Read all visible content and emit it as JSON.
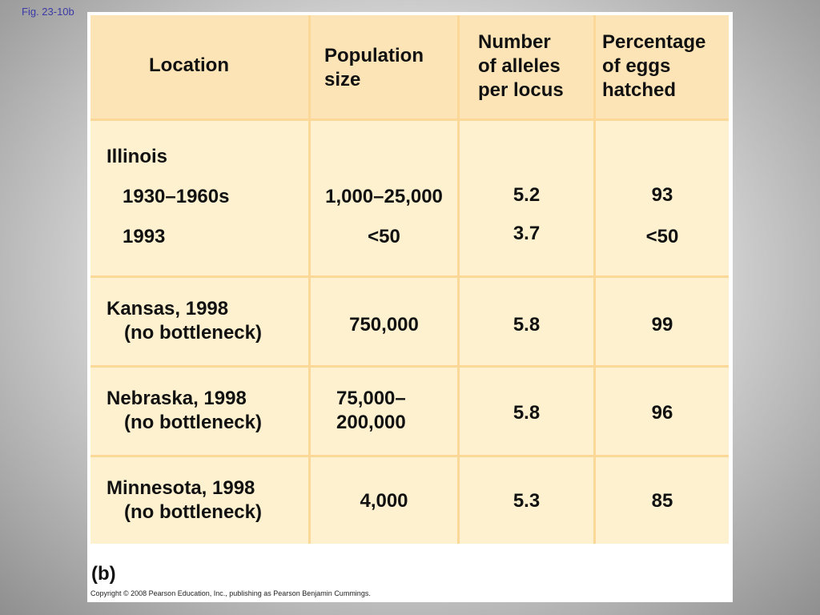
{
  "figure_label": "Fig. 23-10b",
  "headers": {
    "location": [
      "Location"
    ],
    "population": [
      "Population",
      "size"
    ],
    "alleles": [
      "Number",
      "of alleles",
      "per locus"
    ],
    "eggs": [
      "Percentage",
      "of eggs",
      "hatched"
    ]
  },
  "rows": {
    "illinois": {
      "title": "Illinois",
      "sub1": {
        "period": "1930–1960s",
        "population": "1,000–25,000",
        "alleles": "5.2",
        "eggs": "93"
      },
      "sub2": {
        "period": "1993",
        "population": "<50",
        "alleles": "3.7",
        "eggs": "<50"
      }
    },
    "kansas": {
      "location": [
        "Kansas, 1998",
        "(no bottleneck)"
      ],
      "population": [
        "750,000"
      ],
      "alleles": "5.8",
      "eggs": "99"
    },
    "nebraska": {
      "location": [
        "Nebraska, 1998",
        "(no bottleneck)"
      ],
      "population": [
        "75,000–",
        "200,000"
      ],
      "alleles": "5.8",
      "eggs": "96"
    },
    "minnesota": {
      "location": [
        "Minnesota, 1998",
        "(no bottleneck)"
      ],
      "population": [
        "4,000"
      ],
      "alleles": "5.3",
      "eggs": "85"
    }
  },
  "panel_letter": "(b)",
  "copyright": "Copyright © 2008 Pearson Education, Inc., publishing as Pearson Benjamin Cummings.",
  "colors": {
    "header_fill": "#fde4b6",
    "body_fill": "#fdf1cf",
    "grid_line": "#fbd897",
    "figure_label": "#3a3aa8"
  }
}
